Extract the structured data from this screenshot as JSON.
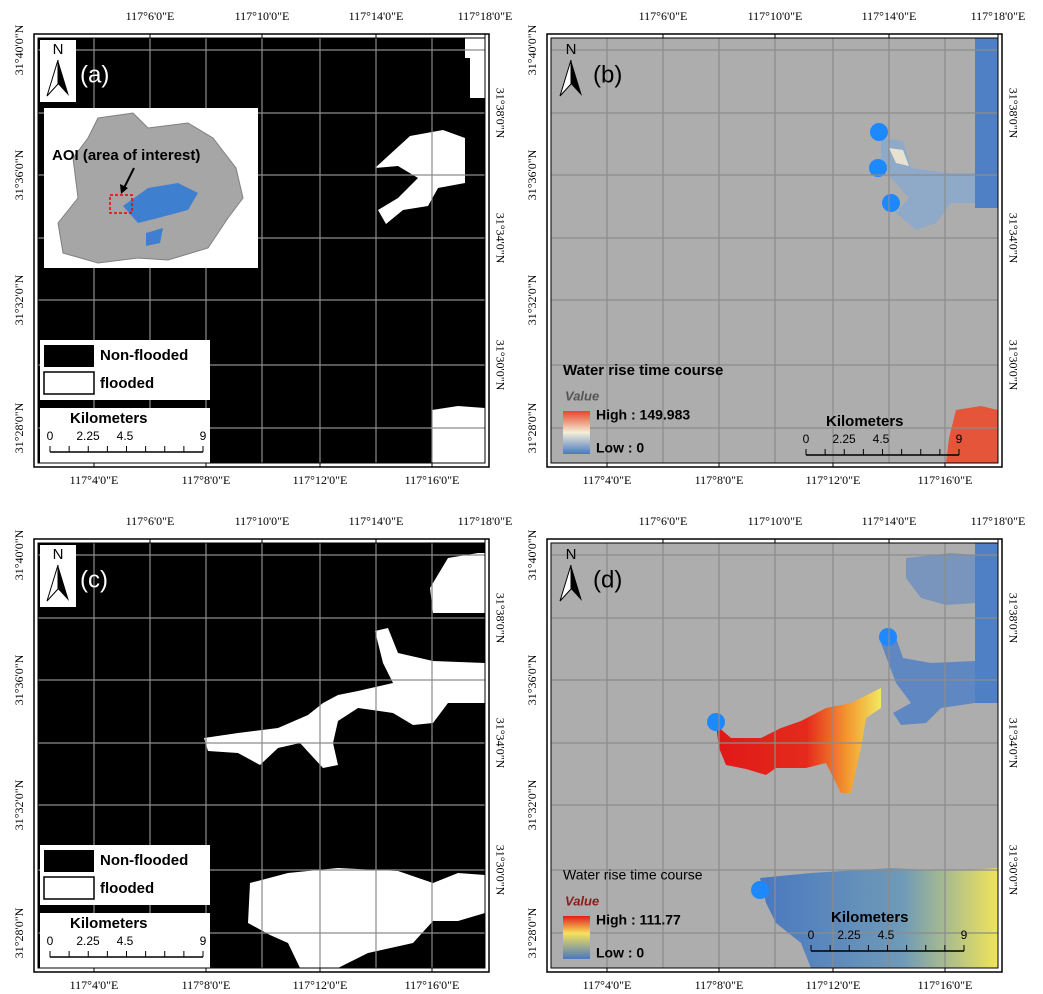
{
  "graticule": {
    "top": [
      "117°6'0\"E",
      "117°10'0\"E",
      "117°14'0\"E",
      "117°18'0\"E"
    ],
    "bottom": [
      "117°4'0\"E",
      "117°8'0\"E",
      "117°12'0\"E",
      "117°16'0\"E"
    ],
    "left": [
      "31°40'0\"N",
      "31°36'0\"N",
      "31°32'0\"N",
      "31°28'0\"N"
    ],
    "right": [
      "31°38'0\"N",
      "31°34'0\"N",
      "31°30'0\"N"
    ]
  },
  "panels": [
    {
      "label": "(a)",
      "north": "N",
      "inset_label": "AOI  (area of interest)",
      "legend": [
        "Non-flooded",
        "flooded"
      ],
      "scale": {
        "title": "Kilometers",
        "ticks": [
          0,
          2.25,
          4.5,
          9
        ]
      }
    },
    {
      "label": "(b)",
      "north": "N",
      "legend_title": "Water rise time course",
      "legend_subtitle": "Value",
      "high": "High : 149.983",
      "low": "Low : 0",
      "scale": {
        "title": "Kilometers",
        "ticks": [
          0,
          2.25,
          4.5,
          9
        ]
      }
    },
    {
      "label": "(c)",
      "north": "N",
      "legend": [
        "Non-flooded",
        "flooded"
      ],
      "scale": {
        "title": "Kilometers",
        "ticks": [
          0,
          2.25,
          4.5,
          9
        ]
      }
    },
    {
      "label": "(d)",
      "north": "N",
      "legend_title": "Water rise time course",
      "legend_subtitle": "Value",
      "high": "High : 111.77",
      "low": "Low : 0",
      "scale": {
        "title": "Kilometers",
        "ticks": [
          0,
          2.25,
          4.5,
          9
        ]
      }
    }
  ]
}
